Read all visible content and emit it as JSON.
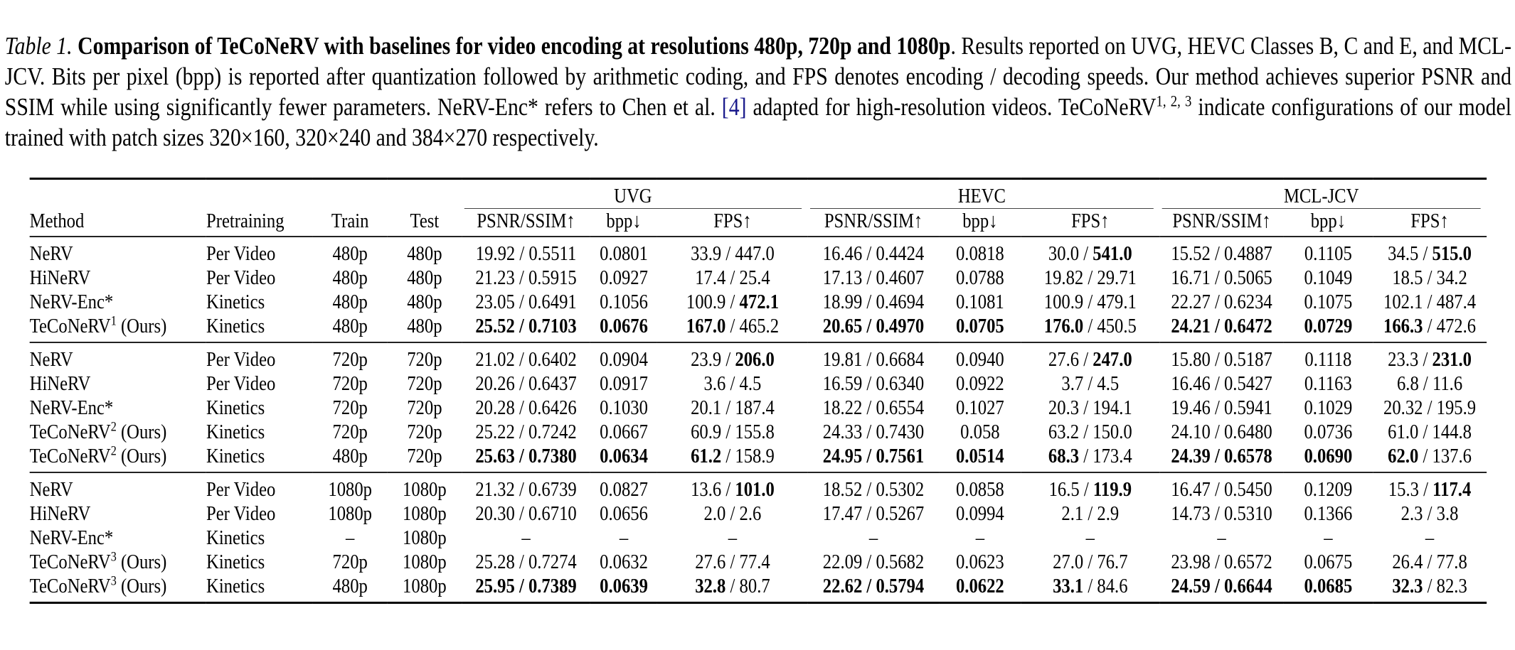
{
  "caption": {
    "lead": "Table 1.",
    "title": "Comparison of TeCoNeRV with baselines for video encoding at resolutions 480p, 720p and 1080p",
    "text1": ". Results reported on UVG, HEVC Classes B, C and E, and MCL-JCV. Bits per pixel (bpp) is reported after quantization followed by arithmetic coding, and FPS denotes encoding / decoding speeds. Our method achieves superior PSNR and SSIM while using significantly fewer parameters. NeRV-Enc* refers to Chen et al. ",
    "cite": "[4]",
    "text2": " adapted for high-resolution videos. TeCoNeRV",
    "sup": "1, 2, 3",
    "text3": " indicate configurations of our model trained with patch sizes 320×160, 320×240 and 384×270 respectively."
  },
  "table": {
    "groups": [
      "UVG",
      "HEVC",
      "MCL-JCV"
    ],
    "headers": {
      "method": "Method",
      "pretraining": "Pretraining",
      "train": "Train",
      "test": "Test",
      "psnr": "PSNR/SSIM↑",
      "bpp": "bpp↓",
      "fps": "FPS↑"
    },
    "sections": [
      [
        {
          "method": "NeRV",
          "sup": "",
          "suffix": "",
          "pre": "Per Video",
          "train": "480p",
          "test": "480p",
          "d": [
            {
              "ps": "19.92 / 0.5511",
              "bp": "0.0801",
              "fe": "33.9",
              "fd": "447.0",
              "b": [
                0,
                0,
                0,
                0
              ]
            },
            {
              "ps": "16.46 / 0.4424",
              "bp": "0.0818",
              "fe": "30.0",
              "fd": "541.0",
              "b": [
                0,
                0,
                0,
                1
              ]
            },
            {
              "ps": "15.52 / 0.4887",
              "bp": "0.1105",
              "fe": "34.5",
              "fd": "515.0",
              "b": [
                0,
                0,
                0,
                1
              ]
            }
          ]
        },
        {
          "method": "HiNeRV",
          "sup": "",
          "suffix": "",
          "pre": "Per Video",
          "train": "480p",
          "test": "480p",
          "d": [
            {
              "ps": "21.23 / 0.5915",
              "bp": "0.0927",
              "fe": "17.4",
              "fd": "25.4",
              "b": [
                0,
                0,
                0,
                0
              ]
            },
            {
              "ps": "17.13 / 0.4607",
              "bp": "0.0788",
              "fe": "19.82",
              "fd": "29.71",
              "b": [
                0,
                0,
                0,
                0
              ]
            },
            {
              "ps": "16.71 / 0.5065",
              "bp": "0.1049",
              "fe": "18.5",
              "fd": "34.2",
              "b": [
                0,
                0,
                0,
                0
              ]
            }
          ]
        },
        {
          "method": "NeRV-Enc*",
          "sup": "",
          "suffix": "",
          "pre": "Kinetics",
          "train": "480p",
          "test": "480p",
          "d": [
            {
              "ps": "23.05 / 0.6491",
              "bp": "0.1056",
              "fe": "100.9",
              "fd": "472.1",
              "b": [
                0,
                0,
                0,
                1
              ]
            },
            {
              "ps": "18.99 / 0.4694",
              "bp": "0.1081",
              "fe": "100.9",
              "fd": "479.1",
              "b": [
                0,
                0,
                0,
                0
              ]
            },
            {
              "ps": "22.27 / 0.6234",
              "bp": "0.1075",
              "fe": "102.1",
              "fd": "487.4",
              "b": [
                0,
                0,
                0,
                0
              ]
            }
          ]
        },
        {
          "method": "TeCoNeRV",
          "sup": "1",
          "suffix": " (Ours)",
          "pre": "Kinetics",
          "train": "480p",
          "test": "480p",
          "d": [
            {
              "ps": "25.52 / 0.7103",
              "bp": "0.0676",
              "fe": "167.0",
              "fd": "465.2",
              "b": [
                1,
                1,
                1,
                0
              ]
            },
            {
              "ps": "20.65 / 0.4970",
              "bp": "0.0705",
              "fe": "176.0",
              "fd": "450.5",
              "b": [
                1,
                1,
                1,
                0
              ]
            },
            {
              "ps": "24.21 / 0.6472",
              "bp": "0.0729",
              "fe": "166.3",
              "fd": "472.6",
              "b": [
                1,
                1,
                1,
                0
              ]
            }
          ]
        }
      ],
      [
        {
          "method": "NeRV",
          "sup": "",
          "suffix": "",
          "pre": "Per Video",
          "train": "720p",
          "test": "720p",
          "d": [
            {
              "ps": "21.02 / 0.6402",
              "bp": "0.0904",
              "fe": "23.9",
              "fd": "206.0",
              "b": [
                0,
                0,
                0,
                1
              ]
            },
            {
              "ps": "19.81 / 0.6684",
              "bp": "0.0940",
              "fe": "27.6",
              "fd": "247.0",
              "b": [
                0,
                0,
                0,
                1
              ]
            },
            {
              "ps": "15.80 / 0.5187",
              "bp": "0.1118",
              "fe": "23.3",
              "fd": "231.0",
              "b": [
                0,
                0,
                0,
                1
              ]
            }
          ]
        },
        {
          "method": "HiNeRV",
          "sup": "",
          "suffix": "",
          "pre": "Per Video",
          "train": "720p",
          "test": "720p",
          "d": [
            {
              "ps": "20.26 / 0.6437",
              "bp": "0.0917",
              "fe": "3.6",
              "fd": "4.5",
              "b": [
                0,
                0,
                0,
                0
              ]
            },
            {
              "ps": "16.59 / 0.6340",
              "bp": "0.0922",
              "fe": "3.7",
              "fd": "4.5",
              "b": [
                0,
                0,
                0,
                0
              ]
            },
            {
              "ps": "16.46 / 0.5427",
              "bp": "0.1163",
              "fe": "6.8",
              "fd": "11.6",
              "b": [
                0,
                0,
                0,
                0
              ]
            }
          ]
        },
        {
          "method": "NeRV-Enc*",
          "sup": "",
          "suffix": "",
          "pre": "Kinetics",
          "train": "720p",
          "test": "720p",
          "d": [
            {
              "ps": "20.28 / 0.6426",
              "bp": "0.1030",
              "fe": "20.1",
              "fd": "187.4",
              "b": [
                0,
                0,
                0,
                0
              ]
            },
            {
              "ps": "18.22 / 0.6554",
              "bp": "0.1027",
              "fe": "20.3",
              "fd": "194.1",
              "b": [
                0,
                0,
                0,
                0
              ]
            },
            {
              "ps": "19.46 / 0.5941",
              "bp": "0.1029",
              "fe": "20.32",
              "fd": "195.9",
              "b": [
                0,
                0,
                0,
                0
              ]
            }
          ]
        },
        {
          "method": "TeCoNeRV",
          "sup": "2",
          "suffix": " (Ours)",
          "pre": "Kinetics",
          "train": "720p",
          "test": "720p",
          "d": [
            {
              "ps": "25.22 / 0.7242",
              "bp": "0.0667",
              "fe": "60.9",
              "fd": "155.8",
              "b": [
                0,
                0,
                0,
                0
              ]
            },
            {
              "ps": "24.33 / 0.7430",
              "bp": "0.058",
              "fe": "63.2",
              "fd": "150.0",
              "b": [
                0,
                0,
                0,
                0
              ]
            },
            {
              "ps": "24.10 / 0.6480",
              "bp": "0.0736",
              "fe": "61.0",
              "fd": "144.8",
              "b": [
                0,
                0,
                0,
                0
              ]
            }
          ]
        },
        {
          "method": "TeCoNeRV",
          "sup": "2",
          "suffix": " (Ours)",
          "pre": "Kinetics",
          "train": "480p",
          "test": "720p",
          "d": [
            {
              "ps": "25.63 / 0.7380",
              "bp": "0.0634",
              "fe": "61.2",
              "fd": "158.9",
              "b": [
                1,
                1,
                1,
                0
              ]
            },
            {
              "ps": "24.95 / 0.7561",
              "bp": "0.0514",
              "fe": "68.3",
              "fd": "173.4",
              "b": [
                1,
                1,
                1,
                0
              ]
            },
            {
              "ps": "24.39 / 0.6578",
              "bp": "0.0690",
              "fe": "62.0",
              "fd": "137.6",
              "b": [
                1,
                1,
                1,
                0
              ]
            }
          ]
        }
      ],
      [
        {
          "method": "NeRV",
          "sup": "",
          "suffix": "",
          "pre": "Per Video",
          "train": "1080p",
          "test": "1080p",
          "d": [
            {
              "ps": "21.32 / 0.6739",
              "bp": "0.0827",
              "fe": "13.6",
              "fd": "101.0",
              "b": [
                0,
                0,
                0,
                1
              ]
            },
            {
              "ps": "18.52 / 0.5302",
              "bp": "0.0858",
              "fe": "16.5",
              "fd": "119.9",
              "b": [
                0,
                0,
                0,
                1
              ]
            },
            {
              "ps": "16.47 / 0.5450",
              "bp": "0.1209",
              "fe": "15.3",
              "fd": "117.4",
              "b": [
                0,
                0,
                0,
                1
              ]
            }
          ]
        },
        {
          "method": "HiNeRV",
          "sup": "",
          "suffix": "",
          "pre": "Per Video",
          "train": "1080p",
          "test": "1080p",
          "d": [
            {
              "ps": "20.30 / 0.6710",
              "bp": "0.0656",
              "fe": "2.0",
              "fd": "2.6",
              "b": [
                0,
                0,
                0,
                0
              ]
            },
            {
              "ps": "17.47 / 0.5267",
              "bp": "0.0994",
              "fe": "2.1",
              "fd": "2.9",
              "b": [
                0,
                0,
                0,
                0
              ]
            },
            {
              "ps": "14.73 / 0.5310",
              "bp": "0.1366",
              "fe": "2.3",
              "fd": "3.8",
              "b": [
                0,
                0,
                0,
                0
              ]
            }
          ]
        },
        {
          "method": "NeRV-Enc*",
          "sup": "",
          "suffix": "",
          "pre": "Kinetics",
          "train": "–",
          "test": "1080p",
          "d": [
            {
              "ps": "–",
              "bp": "–",
              "fe": "–",
              "fd": null,
              "b": [
                0,
                0,
                0,
                0
              ]
            },
            {
              "ps": "–",
              "bp": "–",
              "fe": "–",
              "fd": null,
              "b": [
                0,
                0,
                0,
                0
              ]
            },
            {
              "ps": "–",
              "bp": "–",
              "fe": "–",
              "fd": null,
              "b": [
                0,
                0,
                0,
                0
              ]
            }
          ]
        },
        {
          "method": "TeCoNeRV",
          "sup": "3",
          "suffix": " (Ours)",
          "pre": "Kinetics",
          "train": "720p",
          "test": "1080p",
          "d": [
            {
              "ps": "25.28 / 0.7274",
              "bp": "0.0632",
              "fe": "27.6",
              "fd": "77.4",
              "b": [
                0,
                0,
                0,
                0
              ]
            },
            {
              "ps": "22.09 / 0.5682",
              "bp": "0.0623",
              "fe": "27.0",
              "fd": "76.7",
              "b": [
                0,
                0,
                0,
                0
              ]
            },
            {
              "ps": "23.98 / 0.6572",
              "bp": "0.0675",
              "fe": "26.4",
              "fd": "77.8",
              "b": [
                0,
                0,
                0,
                0
              ]
            }
          ]
        },
        {
          "method": "TeCoNeRV",
          "sup": "3",
          "suffix": " (Ours)",
          "pre": "Kinetics",
          "train": "480p",
          "test": "1080p",
          "d": [
            {
              "ps": "25.95 / 0.7389",
              "bp": "0.0639",
              "fe": "32.8",
              "fd": "80.7",
              "b": [
                1,
                1,
                1,
                0
              ]
            },
            {
              "ps": "22.62 / 0.5794",
              "bp": "0.0622",
              "fe": "33.1",
              "fd": "84.6",
              "b": [
                1,
                1,
                1,
                0
              ]
            },
            {
              "ps": "24.59 / 0.6644",
              "bp": "0.0685",
              "fe": "32.3",
              "fd": "82.3",
              "b": [
                1,
                1,
                1,
                0
              ]
            }
          ]
        }
      ]
    ]
  }
}
